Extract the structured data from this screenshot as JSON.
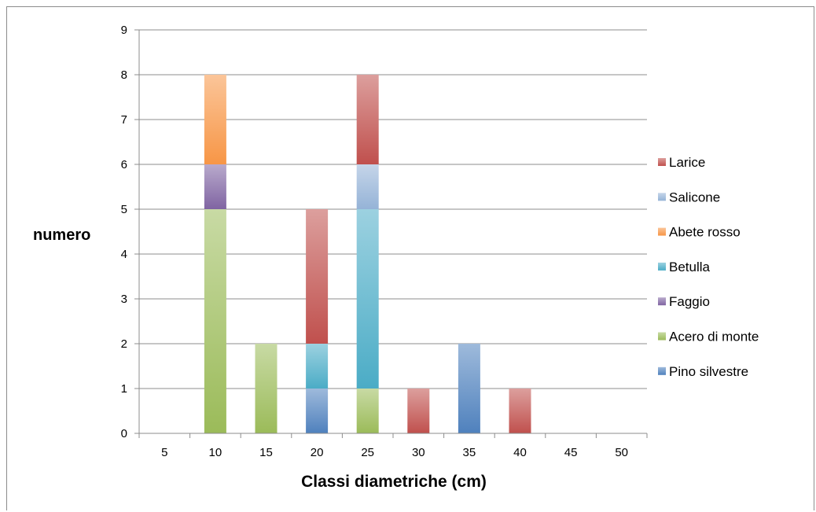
{
  "chart_data": {
    "type": "bar",
    "stacked": true,
    "categories": [
      "5",
      "10",
      "15",
      "20",
      "25",
      "30",
      "35",
      "40",
      "45",
      "50"
    ],
    "series": [
      {
        "name": "Pino silvestre",
        "color": "#4f81bd",
        "values": [
          0,
          0,
          0,
          1,
          0,
          0,
          2,
          0,
          0,
          0
        ]
      },
      {
        "name": "Acero di monte",
        "color": "#9bbb59",
        "values": [
          0,
          5,
          2,
          0,
          1,
          0,
          0,
          0,
          0,
          0
        ]
      },
      {
        "name": "Faggio",
        "color": "#8064a2",
        "values": [
          0,
          1,
          0,
          0,
          0,
          0,
          0,
          0,
          0,
          0
        ]
      },
      {
        "name": "Betulla",
        "color": "#4bacc6",
        "values": [
          0,
          0,
          0,
          1,
          4,
          0,
          0,
          0,
          0,
          0
        ]
      },
      {
        "name": "Abete rosso",
        "color": "#f79646",
        "values": [
          0,
          2,
          0,
          0,
          0,
          0,
          0,
          0,
          0,
          0
        ]
      },
      {
        "name": "Salicone",
        "color": "#95b3d7",
        "values": [
          0,
          0,
          0,
          0,
          1,
          0,
          0,
          0,
          0,
          0
        ]
      },
      {
        "name": "Larice",
        "color": "#c0504d",
        "values": [
          0,
          0,
          0,
          3,
          2,
          1,
          0,
          1,
          0,
          0
        ]
      }
    ],
    "xlabel": "Classi diametriche (cm)",
    "ylabel": "numero",
    "ylim": [
      0,
      9
    ],
    "yticks": [
      "0",
      "1",
      "2",
      "3",
      "4",
      "5",
      "6",
      "7",
      "8",
      "9"
    ],
    "grid": true,
    "legend_position": "right"
  }
}
